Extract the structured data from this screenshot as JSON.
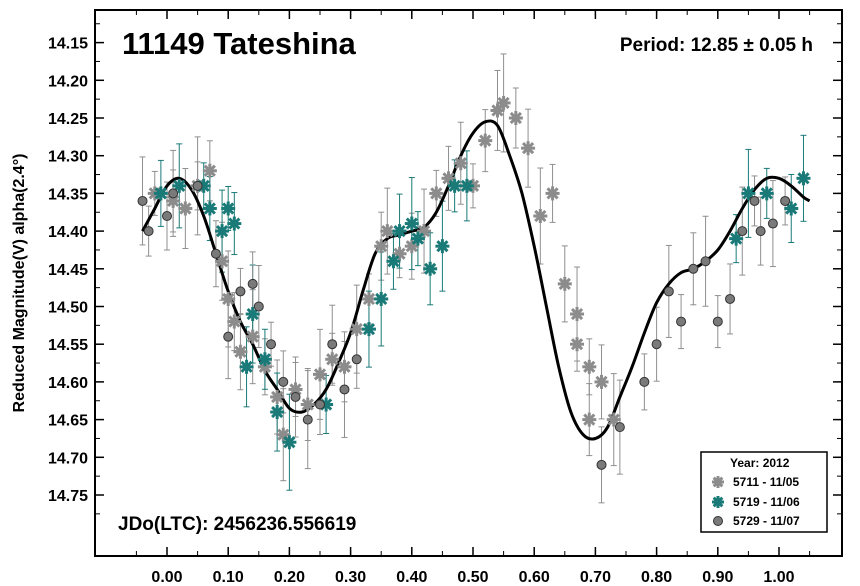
{
  "chart_data": {
    "type": "scatter",
    "title": "11149 Tateshina",
    "period_label": "Period: 12.85 ± 0.05 h",
    "jd_label": "JDo(LTC): 2456236.556619",
    "ylabel": "Reduced Magnitude(V) alpha(2.4°)",
    "xlabel": "",
    "xlim": [
      -0.07,
      1.09
    ],
    "ylim": [
      14.795,
      14.1
    ],
    "y_inverted": true,
    "x_ticks": [
      "0.00",
      "0.10",
      "0.20",
      "0.30",
      "0.40",
      "0.50",
      "0.60",
      "0.70",
      "0.80",
      "0.90",
      "1.00"
    ],
    "y_ticks": [
      "14.15",
      "14.20",
      "14.25",
      "14.30",
      "14.35",
      "14.40",
      "14.45",
      "14.50",
      "14.55",
      "14.60",
      "14.65",
      "14.70",
      "14.75"
    ],
    "legend": {
      "title": "Year: 2012",
      "placement": "bottom-right",
      "entries": [
        "5711 - 11/05",
        "5719 - 11/06",
        "5729 - 11/07"
      ]
    },
    "colors": {
      "s1": "#8c8c8c",
      "s2": "#1a7a78",
      "s3": "#7a7a7a",
      "errorbar": "#8f8f8f",
      "curve": "#000000"
    },
    "series": [
      {
        "name": "5711 - 11/05",
        "marker": "asterisk",
        "points": [
          [
            -0.02,
            14.35
          ],
          [
            0.01,
            14.36
          ],
          [
            0.03,
            14.37
          ],
          [
            0.05,
            14.34
          ],
          [
            0.07,
            14.32
          ],
          [
            0.09,
            14.44
          ],
          [
            0.1,
            14.49
          ],
          [
            0.11,
            14.52
          ],
          [
            0.12,
            14.56
          ],
          [
            0.14,
            14.54
          ],
          [
            0.16,
            14.58
          ],
          [
            0.18,
            14.62
          ],
          [
            0.19,
            14.67
          ],
          [
            0.21,
            14.61
          ],
          [
            0.23,
            14.63
          ],
          [
            0.25,
            14.59
          ],
          [
            0.27,
            14.57
          ],
          [
            0.29,
            14.58
          ],
          [
            0.31,
            14.53
          ],
          [
            0.33,
            14.49
          ],
          [
            0.35,
            14.42
          ],
          [
            0.36,
            14.4
          ],
          [
            0.38,
            14.43
          ],
          [
            0.4,
            14.42
          ],
          [
            0.42,
            14.4
          ],
          [
            0.44,
            14.35
          ],
          [
            0.46,
            14.33
          ],
          [
            0.48,
            14.31
          ],
          [
            0.5,
            14.34
          ],
          [
            0.52,
            14.28
          ],
          [
            0.54,
            14.24
          ],
          [
            0.55,
            14.23
          ],
          [
            0.57,
            14.25
          ],
          [
            0.59,
            14.29
          ],
          [
            0.61,
            14.38
          ],
          [
            0.63,
            14.35
          ],
          [
            0.65,
            14.47
          ],
          [
            0.67,
            14.51
          ],
          [
            0.69,
            14.58
          ],
          [
            0.71,
            14.6
          ],
          [
            0.73,
            14.65
          ],
          [
            0.67,
            14.55
          ],
          [
            0.69,
            14.65
          ]
        ]
      },
      {
        "name": "5719 - 11/06",
        "marker": "asterisk",
        "points": [
          [
            -0.01,
            14.35
          ],
          [
            0.02,
            14.34
          ],
          [
            0.06,
            14.34
          ],
          [
            0.07,
            14.37
          ],
          [
            0.09,
            14.4
          ],
          [
            0.1,
            14.37
          ],
          [
            0.11,
            14.39
          ],
          [
            0.13,
            14.58
          ],
          [
            0.14,
            14.51
          ],
          [
            0.16,
            14.57
          ],
          [
            0.18,
            14.64
          ],
          [
            0.2,
            14.68
          ],
          [
            0.26,
            14.63
          ],
          [
            0.33,
            14.53
          ],
          [
            0.35,
            14.49
          ],
          [
            0.37,
            14.44
          ],
          [
            0.38,
            14.4
          ],
          [
            0.4,
            14.39
          ],
          [
            0.41,
            14.41
          ],
          [
            0.43,
            14.45
          ],
          [
            0.45,
            14.42
          ],
          [
            0.47,
            14.34
          ],
          [
            0.49,
            14.34
          ],
          [
            0.95,
            14.35
          ],
          [
            0.98,
            14.35
          ],
          [
            1.02,
            14.37
          ],
          [
            1.04,
            14.33
          ],
          [
            0.93,
            14.41
          ]
        ]
      },
      {
        "name": "5729 - 11/07",
        "marker": "circle",
        "points": [
          [
            -0.04,
            14.36
          ],
          [
            -0.03,
            14.4
          ],
          [
            0.0,
            14.38
          ],
          [
            0.01,
            14.35
          ],
          [
            0.05,
            14.34
          ],
          [
            0.08,
            14.43
          ],
          [
            0.1,
            14.54
          ],
          [
            0.12,
            14.48
          ],
          [
            0.14,
            14.47
          ],
          [
            0.15,
            14.5
          ],
          [
            0.17,
            14.55
          ],
          [
            0.19,
            14.6
          ],
          [
            0.21,
            14.62
          ],
          [
            0.23,
            14.65
          ],
          [
            0.25,
            14.63
          ],
          [
            0.27,
            14.55
          ],
          [
            0.29,
            14.61
          ],
          [
            0.31,
            14.57
          ],
          [
            0.71,
            14.71
          ],
          [
            0.74,
            14.66
          ],
          [
            0.78,
            14.6
          ],
          [
            0.8,
            14.55
          ],
          [
            0.82,
            14.48
          ],
          [
            0.84,
            14.52
          ],
          [
            0.86,
            14.45
          ],
          [
            0.88,
            14.44
          ],
          [
            0.9,
            14.52
          ],
          [
            0.92,
            14.49
          ],
          [
            0.94,
            14.4
          ],
          [
            0.96,
            14.36
          ],
          [
            0.97,
            14.4
          ],
          [
            0.99,
            14.39
          ],
          [
            1.01,
            14.36
          ]
        ]
      }
    ],
    "fit_curve": {
      "x": [
        -0.04,
        -0.02,
        0.0,
        0.02,
        0.04,
        0.06,
        0.08,
        0.1,
        0.12,
        0.14,
        0.16,
        0.18,
        0.2,
        0.22,
        0.24,
        0.26,
        0.28,
        0.3,
        0.32,
        0.34,
        0.36,
        0.38,
        0.4,
        0.42,
        0.44,
        0.46,
        0.48,
        0.5,
        0.52,
        0.54,
        0.56,
        0.58,
        0.6,
        0.62,
        0.64,
        0.66,
        0.68,
        0.7,
        0.72,
        0.74,
        0.76,
        0.78,
        0.8,
        0.82,
        0.84,
        0.86,
        0.88,
        0.9,
        0.92,
        0.94,
        0.96,
        0.98,
        1.0,
        1.02,
        1.04,
        1.05
      ],
      "y": [
        14.4,
        14.37,
        14.34,
        14.33,
        14.345,
        14.38,
        14.43,
        14.48,
        14.52,
        14.55,
        14.585,
        14.61,
        14.635,
        14.64,
        14.63,
        14.61,
        14.575,
        14.535,
        14.48,
        14.43,
        14.41,
        14.405,
        14.4,
        14.395,
        14.375,
        14.34,
        14.3,
        14.27,
        14.255,
        14.26,
        14.3,
        14.35,
        14.42,
        14.5,
        14.58,
        14.64,
        14.67,
        14.675,
        14.66,
        14.62,
        14.58,
        14.535,
        14.495,
        14.47,
        14.455,
        14.45,
        14.44,
        14.425,
        14.4,
        14.37,
        14.345,
        14.33,
        14.33,
        14.34,
        14.355,
        14.36
      ]
    }
  }
}
